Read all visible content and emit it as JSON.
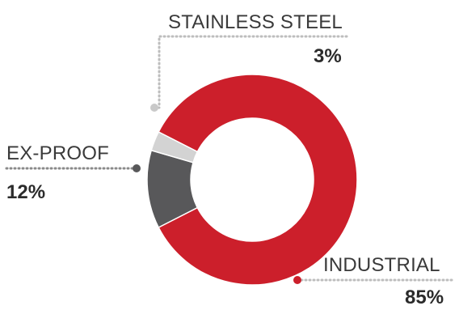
{
  "chart_data": {
    "type": "pie",
    "variant": "donut",
    "title": "",
    "categories": [
      "INDUSTRIAL",
      "EX-PROOF",
      "STAINLESS STEEL"
    ],
    "values": [
      85,
      12,
      3
    ],
    "value_labels": [
      "85%",
      "12%",
      "3%"
    ],
    "colors": [
      "#cc1f2b",
      "#58585a",
      "#d3d3d3"
    ],
    "legend": "none",
    "labels_with_leader_lines": true
  }
}
